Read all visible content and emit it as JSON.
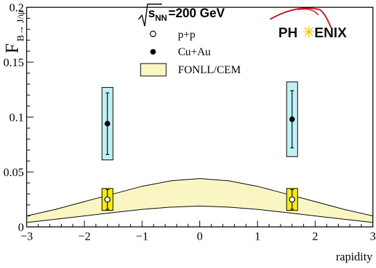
{
  "chart_data": {
    "type": "scatter",
    "title": "",
    "xlabel": "rapidity",
    "ylabel_main": "F",
    "ylabel_sub": "B→ J/ψ",
    "xlim": [
      -3,
      3
    ],
    "ylim": [
      0,
      0.2
    ],
    "x_ticks": [
      -3,
      -2,
      -1,
      0,
      1,
      2,
      3
    ],
    "y_ticks": [
      0,
      0.05,
      0.1,
      0.15,
      0.2
    ],
    "x_tick_labels": [
      "−3",
      "−2",
      "−1",
      "0",
      "1",
      "2",
      "3"
    ],
    "y_tick_labels": [
      "0",
      "0.05",
      "0.1",
      "0.15",
      "0.2"
    ],
    "grid": false,
    "legend_position": "top-center",
    "energy_label": {
      "prefix": "s",
      "subscript": "NN",
      "suffix": "=200 GeV"
    },
    "logo": "PHENIX",
    "series": [
      {
        "name": "p+p",
        "marker": "open-circle",
        "points": [
          {
            "x": -1.6,
            "y": 0.025,
            "stat_err": 0.009,
            "sys_err": 0.01
          },
          {
            "x": 1.6,
            "y": 0.025,
            "stat_err": 0.009,
            "sys_err": 0.01
          }
        ],
        "box_color": "#f5ea14"
      },
      {
        "name": "Cu+Au",
        "marker": "filled-circle",
        "points": [
          {
            "x": -1.6,
            "y": 0.094,
            "stat_err": 0.028,
            "sys_err": 0.033
          },
          {
            "x": 1.6,
            "y": 0.098,
            "stat_err": 0.026,
            "sys_err": 0.034
          }
        ],
        "box_color": "#bff1f6"
      }
    ],
    "band": {
      "name": "FONLL/CEM",
      "color": "#faf6c3",
      "x": [
        -3,
        -2.5,
        -2,
        -1.5,
        -1,
        -0.5,
        0,
        0.5,
        1,
        1.5,
        2,
        2.5,
        3
      ],
      "upper": [
        0.01,
        0.016,
        0.023,
        0.03,
        0.037,
        0.042,
        0.044,
        0.042,
        0.037,
        0.03,
        0.023,
        0.016,
        0.01
      ],
      "lower": [
        0.004,
        0.007,
        0.01,
        0.013,
        0.016,
        0.018,
        0.019,
        0.018,
        0.016,
        0.013,
        0.01,
        0.007,
        0.004
      ]
    }
  }
}
